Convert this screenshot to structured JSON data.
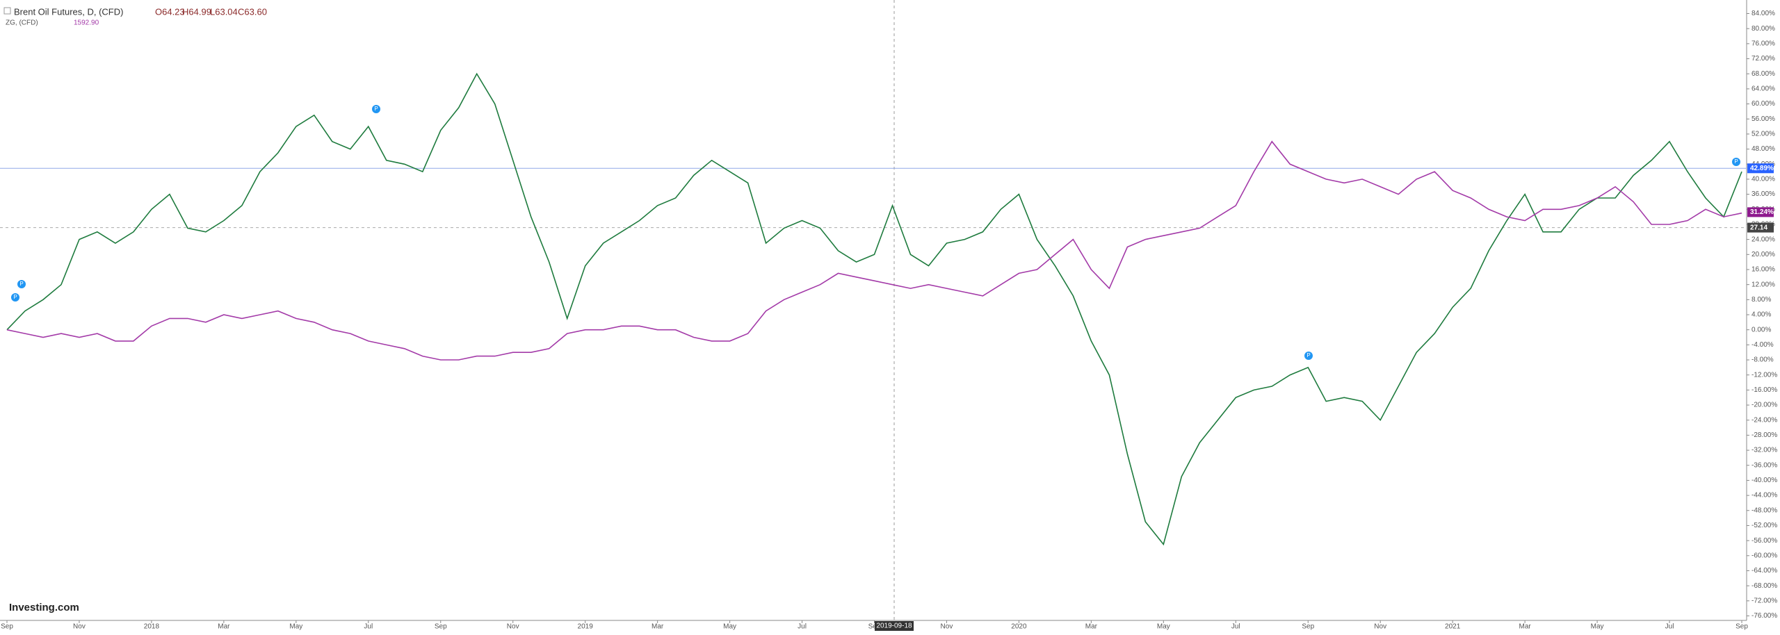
{
  "header": {
    "title": "Brent Oil Futures, D, (CFD)",
    "open": "O64.23",
    "high": "H64.99",
    "low": "L63.04",
    "close": "C63.60",
    "compare_name": "ZG, (CFD)",
    "compare_value": "1592.90"
  },
  "logo": "Investing.com",
  "markers": [
    "P",
    "P",
    "P",
    "P",
    "P"
  ],
  "crosshair_label": "2019-09-18",
  "chart_data": {
    "type": "line",
    "categories": [
      "Sep",
      null,
      null,
      null,
      "Nov",
      null,
      null,
      null,
      "2018",
      null,
      null,
      null,
      "Mar",
      null,
      null,
      null,
      "May",
      null,
      null,
      null,
      "Jul",
      null,
      null,
      null,
      "Sep",
      null,
      null,
      null,
      "Nov",
      null,
      null,
      null,
      "2019",
      null,
      null,
      null,
      "Mar",
      null,
      null,
      null,
      "May",
      null,
      null,
      null,
      "Jul",
      null,
      null,
      null,
      "Sep",
      null,
      null,
      null,
      "Nov",
      null,
      null,
      null,
      "2020",
      null,
      null,
      null,
      "Mar",
      null,
      null,
      null,
      "May",
      null,
      null,
      null,
      "Jul",
      null,
      null,
      null,
      "Sep",
      null,
      null,
      null,
      "Nov",
      null,
      null,
      null,
      "2021",
      null,
      null,
      null,
      "Mar",
      null,
      null,
      null,
      "May",
      null,
      null,
      null,
      "Jul",
      null,
      null,
      null,
      "Sep"
    ],
    "series": [
      {
        "name": "Brent Oil Futures",
        "color": "#1e7b3e",
        "values": [
          0,
          5,
          8,
          12,
          24,
          26,
          23,
          26,
          32,
          36,
          27,
          26,
          29,
          33,
          42,
          47,
          54,
          57,
          50,
          48,
          54,
          45,
          44,
          42,
          53,
          59,
          68,
          60,
          45,
          30,
          18,
          3,
          17,
          23,
          26,
          29,
          33,
          35,
          41,
          45,
          42,
          39,
          23,
          27,
          29,
          27,
          21,
          18,
          20,
          33,
          20,
          17,
          23,
          24,
          26,
          32,
          36,
          24,
          17,
          9,
          -3,
          -12,
          -33,
          -51,
          -57,
          -39,
          -30,
          -24,
          -18,
          -16,
          -15,
          -12,
          -10,
          -19,
          -18,
          -19,
          -24,
          -15,
          -6,
          -1,
          6,
          11,
          21,
          29,
          36,
          26,
          26,
          32,
          35,
          35,
          41,
          45,
          50,
          42,
          35,
          30,
          42
        ]
      },
      {
        "name": "ZG",
        "color": "#a33aa8",
        "values": [
          0,
          -1,
          -2,
          -1,
          -2,
          -1,
          -3,
          -3,
          1,
          3,
          3,
          2,
          4,
          3,
          4,
          5,
          3,
          2,
          0,
          -1,
          -3,
          -4,
          -5,
          -7,
          -8,
          -8,
          -7,
          -7,
          -6,
          -6,
          -5,
          -1,
          0,
          0,
          1,
          1,
          0,
          0,
          -2,
          -3,
          -3,
          -1,
          5,
          8,
          10,
          12,
          15,
          14,
          13,
          12,
          11,
          12,
          11,
          10,
          9,
          12,
          15,
          16,
          20,
          24,
          16,
          11,
          22,
          24,
          25,
          26,
          27,
          30,
          33,
          42,
          50,
          44,
          42,
          40,
          39,
          40,
          38,
          36,
          40,
          42,
          37,
          35,
          32,
          30,
          29,
          32,
          32,
          33,
          35,
          38,
          34,
          28,
          28,
          29,
          32,
          30,
          31
        ]
      }
    ],
    "price_tags": [
      {
        "value": 42.89,
        "label": "42.89%",
        "color": "#2962ff"
      },
      {
        "value": 31.24,
        "label": "31.24%",
        "color": "#8e1a8e"
      },
      {
        "value": 27.14,
        "color": "#444444"
      }
    ],
    "ylim": [
      -77.2,
      87.6
    ],
    "yticks": [
      {
        "value": 84,
        "label": "84.00%"
      },
      {
        "value": 80,
        "label": "80.00%"
      },
      {
        "value": 76,
        "label": "76.00%"
      },
      {
        "value": 72,
        "label": "72.00%"
      },
      {
        "value": 68,
        "label": "68.00%"
      },
      {
        "value": 64,
        "label": "64.00%"
      },
      {
        "value": 60,
        "label": "60.00%"
      },
      {
        "value": 56,
        "label": "56.00%"
      },
      {
        "value": 52,
        "label": "52.00%"
      },
      {
        "value": 48,
        "label": "48.00%"
      },
      {
        "value": 44,
        "label": "44.00%"
      },
      {
        "value": 40,
        "label": "40.00%"
      },
      {
        "value": 36,
        "label": "36.00%"
      },
      {
        "value": 32,
        "label": "32.00%"
      },
      {
        "value": 28,
        "label": "28.00%"
      },
      {
        "value": 24,
        "label": "24.00%"
      },
      {
        "value": 20,
        "label": "20.00%"
      },
      {
        "value": 16,
        "label": "16.00%"
      },
      {
        "value": 12,
        "label": "12.00%"
      },
      {
        "value": 8,
        "label": "8.00%"
      },
      {
        "value": 4,
        "label": "4.00%"
      },
      {
        "value": 0,
        "label": "0.00%"
      },
      {
        "value": -4,
        "label": "-4.00%"
      },
      {
        "value": -8,
        "label": "-8.00%"
      },
      {
        "value": -12,
        "label": "-12.00%"
      },
      {
        "value": -16,
        "label": "-16.00%"
      },
      {
        "value": -20,
        "label": "-20.00%"
      },
      {
        "value": -24,
        "label": "-24.00%"
      },
      {
        "value": -28,
        "label": "-28.00%"
      },
      {
        "value": -32,
        "label": "-32.00%"
      },
      {
        "value": -36,
        "label": "-36.00%"
      },
      {
        "value": -40,
        "label": "-40.00%"
      },
      {
        "value": -44,
        "label": "-44.00%"
      },
      {
        "value": -48,
        "label": "-48.00%"
      },
      {
        "value": -52,
        "label": "-52.00%"
      },
      {
        "value": -56,
        "label": "-56.00%"
      },
      {
        "value": -60,
        "label": "-60.00%"
      },
      {
        "value": -64,
        "label": "-64.00%"
      },
      {
        "value": -68,
        "label": "-68.00%"
      },
      {
        "value": -72,
        "label": "-72.00%"
      },
      {
        "value": -76,
        "label": "-76.00%"
      }
    ],
    "grid": false
  }
}
